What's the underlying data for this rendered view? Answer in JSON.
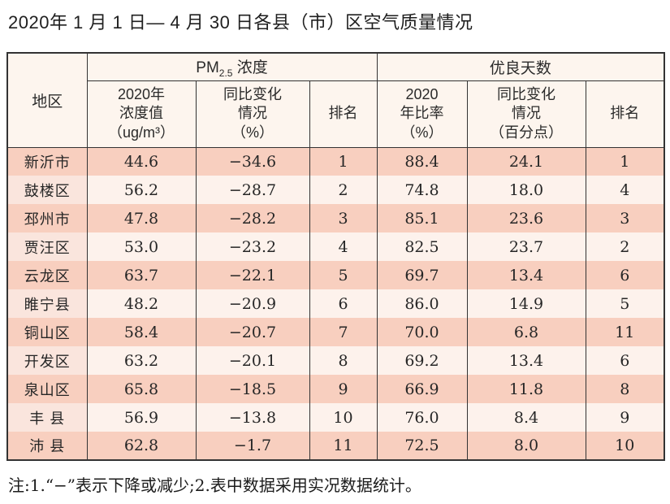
{
  "title": "2020年 1 月 1 日— 4 月 30 日各县（市）区空气质量情况",
  "note": "注:1.“−”表示下降或减少;2.表中数据采用实况数据统计。",
  "colors": {
    "row_odd": "#f8cfbf",
    "row_even": "#fdf2ec",
    "row_even_region": "#fae5dd",
    "header_bg": "#fdf5ee",
    "border": "#333333"
  },
  "table": {
    "header": {
      "region": "地区",
      "pm25_group": {
        "prefix": "PM",
        "sub": "2.5",
        "suffix": " 浓度"
      },
      "good_days_group": "优良天数"
    },
    "subheaders": {
      "pm_value": "2020年\n浓度值\n（ug/m³）",
      "pm_change": "同比变化\n情况\n（%）",
      "pm_rank": "排名",
      "good_rate": "2020\n年比率\n（%）",
      "good_change": "同比变化\n情况\n（百分点）",
      "good_rank": "排名"
    },
    "columns_order": [
      "region",
      "pm25_value",
      "pm25_change",
      "pm25_rank",
      "good_rate",
      "good_change",
      "good_rank"
    ],
    "rows": [
      {
        "region": "新沂市",
        "pm25_value": "44.6",
        "pm25_change": "−34.6",
        "pm25_rank": "1",
        "good_rate": "88.4",
        "good_change": "24.1",
        "good_rank": "1"
      },
      {
        "region": "鼓楼区",
        "pm25_value": "56.2",
        "pm25_change": "−28.7",
        "pm25_rank": "2",
        "good_rate": "74.8",
        "good_change": "18.0",
        "good_rank": "4"
      },
      {
        "region": "邳州市",
        "pm25_value": "47.8",
        "pm25_change": "−28.2",
        "pm25_rank": "3",
        "good_rate": "85.1",
        "good_change": "23.6",
        "good_rank": "3"
      },
      {
        "region": "贾汪区",
        "pm25_value": "53.0",
        "pm25_change": "−23.2",
        "pm25_rank": "4",
        "good_rate": "82.5",
        "good_change": "23.7",
        "good_rank": "2"
      },
      {
        "region": "云龙区",
        "pm25_value": "63.7",
        "pm25_change": "−22.1",
        "pm25_rank": "5",
        "good_rate": "69.7",
        "good_change": "13.4",
        "good_rank": "6"
      },
      {
        "region": "睢宁县",
        "pm25_value": "48.2",
        "pm25_change": "−20.9",
        "pm25_rank": "6",
        "good_rate": "86.0",
        "good_change": "14.9",
        "good_rank": "5"
      },
      {
        "region": "铜山区",
        "pm25_value": "58.4",
        "pm25_change": "−20.7",
        "pm25_rank": "7",
        "good_rate": "70.0",
        "good_change": "6.8",
        "good_rank": "11"
      },
      {
        "region": "开发区",
        "pm25_value": "63.2",
        "pm25_change": "−20.1",
        "pm25_rank": "8",
        "good_rate": "69.2",
        "good_change": "13.4",
        "good_rank": "6"
      },
      {
        "region": "泉山区",
        "pm25_value": "65.8",
        "pm25_change": "−18.5",
        "pm25_rank": "9",
        "good_rate": "66.9",
        "good_change": "11.8",
        "good_rank": "8"
      },
      {
        "region": "丰 县",
        "pm25_value": "56.9",
        "pm25_change": "−13.8",
        "pm25_rank": "10",
        "good_rate": "76.0",
        "good_change": "8.4",
        "good_rank": "9"
      },
      {
        "region": "沛 县",
        "pm25_value": "62.8",
        "pm25_change": "−1.7",
        "pm25_rank": "11",
        "good_rate": "72.5",
        "good_change": "8.0",
        "good_rank": "10"
      }
    ]
  }
}
